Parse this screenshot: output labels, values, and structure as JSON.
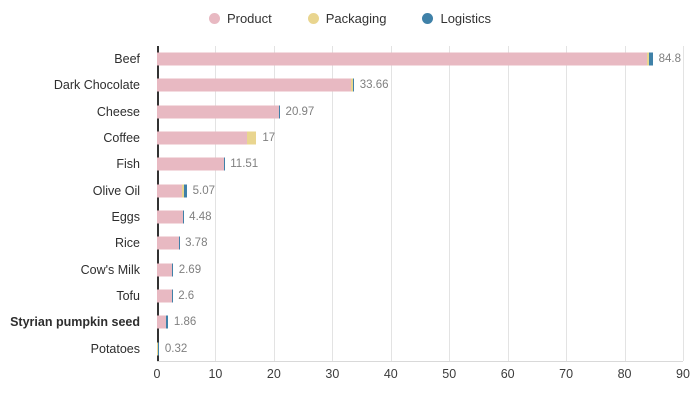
{
  "legend": {
    "items": [
      {
        "label": "Product",
        "color": "#e8b9c2"
      },
      {
        "label": "Packaging",
        "color": "#e9d58f"
      },
      {
        "label": "Logistics",
        "color": "#3f81a8"
      }
    ]
  },
  "chart_data": {
    "type": "bar",
    "orientation": "horizontal",
    "stacked": true,
    "title": "",
    "xlabel": "",
    "ylabel": "",
    "xlim": [
      0,
      90
    ],
    "x_ticks": [
      0,
      10,
      20,
      30,
      40,
      50,
      60,
      70,
      80,
      90
    ],
    "grid": "vertical",
    "legend_position": "top",
    "bold_category": "Styrian pumpkin seed",
    "categories": [
      "Beef",
      "Dark Chocolate",
      "Cheese",
      "Coffee",
      "Fish",
      "Olive Oil",
      "Eggs",
      "Rice",
      "Cow's Milk",
      "Tofu",
      "Styrian pumpkin seed",
      "Potatoes"
    ],
    "totals": [
      84.8,
      33.66,
      20.97,
      17,
      11.51,
      5.07,
      4.48,
      3.78,
      2.69,
      2.6,
      1.86,
      0.32
    ],
    "value_labels": [
      "84.8",
      "33.66",
      "20.97",
      "17",
      "11.51",
      "5.07",
      "4.48",
      "3.78",
      "2.69",
      "2.6",
      "1.86",
      "0.32"
    ],
    "series": [
      {
        "name": "Product",
        "color": "#e8b9c2",
        "values": [
          83.9,
          33.2,
          20.8,
          15.4,
          11.4,
          4.3,
          4.45,
          3.75,
          2.55,
          2.58,
          1.5,
          0.08
        ]
      },
      {
        "name": "Packaging",
        "color": "#e9d58f",
        "values": [
          0.35,
          0.4,
          0,
          1.6,
          0,
          0.35,
          0,
          0,
          0,
          0,
          0,
          0.02
        ]
      },
      {
        "name": "Logistics",
        "color": "#3f81a8",
        "values": [
          0.55,
          0.06,
          0.17,
          0,
          0.11,
          0.42,
          0.03,
          0.03,
          0.14,
          0.02,
          0.36,
          0.22
        ]
      }
    ],
    "colors": {
      "gridline": "#e3e3e3",
      "zero_axis": "#333333",
      "value_label_text": "#7f7f7f",
      "tick_label_text": "#3b3b3b",
      "category_label_text": "#2e2e2e"
    }
  }
}
